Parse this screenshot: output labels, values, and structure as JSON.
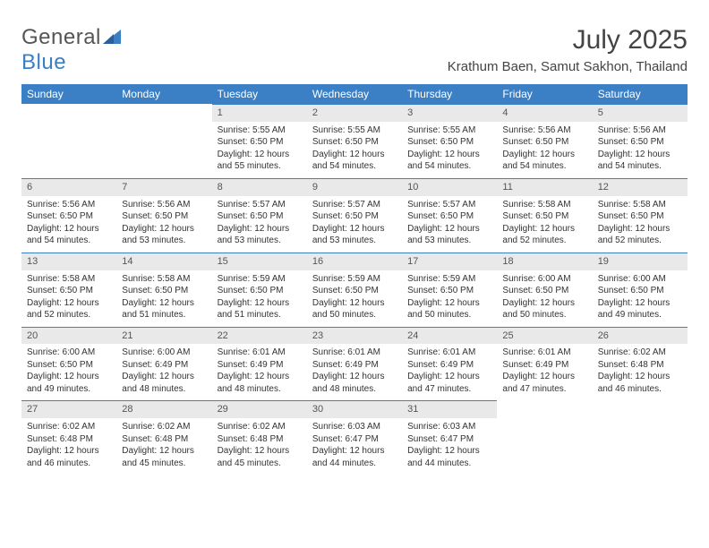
{
  "brand": {
    "name_part1": "General",
    "name_part2": "Blue"
  },
  "title": "July 2025",
  "location": "Krathum Baen, Samut Sakhon, Thailand",
  "colors": {
    "header_blue": "#3b7fc4",
    "daybar_bg": "#e9e9e9",
    "text": "#333333",
    "page_bg": "#ffffff"
  },
  "typography": {
    "title_fontsize": 30,
    "location_fontsize": 15,
    "header_fontsize": 12,
    "cell_fontsize": 10
  },
  "layout": {
    "columns": 7,
    "rows": 5,
    "start_weekday": "Sunday",
    "first_day_column_index": 2
  },
  "day_headers": [
    "Sunday",
    "Monday",
    "Tuesday",
    "Wednesday",
    "Thursday",
    "Friday",
    "Saturday"
  ],
  "labels": {
    "sunrise": "Sunrise:",
    "sunset": "Sunset:",
    "daylight": "Daylight:"
  },
  "days": [
    {
      "n": 1,
      "sunrise": "5:55 AM",
      "sunset": "6:50 PM",
      "daylight": "12 hours and 55 minutes."
    },
    {
      "n": 2,
      "sunrise": "5:55 AM",
      "sunset": "6:50 PM",
      "daylight": "12 hours and 54 minutes."
    },
    {
      "n": 3,
      "sunrise": "5:55 AM",
      "sunset": "6:50 PM",
      "daylight": "12 hours and 54 minutes."
    },
    {
      "n": 4,
      "sunrise": "5:56 AM",
      "sunset": "6:50 PM",
      "daylight": "12 hours and 54 minutes."
    },
    {
      "n": 5,
      "sunrise": "5:56 AM",
      "sunset": "6:50 PM",
      "daylight": "12 hours and 54 minutes."
    },
    {
      "n": 6,
      "sunrise": "5:56 AM",
      "sunset": "6:50 PM",
      "daylight": "12 hours and 54 minutes."
    },
    {
      "n": 7,
      "sunrise": "5:56 AM",
      "sunset": "6:50 PM",
      "daylight": "12 hours and 53 minutes."
    },
    {
      "n": 8,
      "sunrise": "5:57 AM",
      "sunset": "6:50 PM",
      "daylight": "12 hours and 53 minutes."
    },
    {
      "n": 9,
      "sunrise": "5:57 AM",
      "sunset": "6:50 PM",
      "daylight": "12 hours and 53 minutes."
    },
    {
      "n": 10,
      "sunrise": "5:57 AM",
      "sunset": "6:50 PM",
      "daylight": "12 hours and 53 minutes."
    },
    {
      "n": 11,
      "sunrise": "5:58 AM",
      "sunset": "6:50 PM",
      "daylight": "12 hours and 52 minutes."
    },
    {
      "n": 12,
      "sunrise": "5:58 AM",
      "sunset": "6:50 PM",
      "daylight": "12 hours and 52 minutes."
    },
    {
      "n": 13,
      "sunrise": "5:58 AM",
      "sunset": "6:50 PM",
      "daylight": "12 hours and 52 minutes."
    },
    {
      "n": 14,
      "sunrise": "5:58 AM",
      "sunset": "6:50 PM",
      "daylight": "12 hours and 51 minutes."
    },
    {
      "n": 15,
      "sunrise": "5:59 AM",
      "sunset": "6:50 PM",
      "daylight": "12 hours and 51 minutes."
    },
    {
      "n": 16,
      "sunrise": "5:59 AM",
      "sunset": "6:50 PM",
      "daylight": "12 hours and 50 minutes."
    },
    {
      "n": 17,
      "sunrise": "5:59 AM",
      "sunset": "6:50 PM",
      "daylight": "12 hours and 50 minutes."
    },
    {
      "n": 18,
      "sunrise": "6:00 AM",
      "sunset": "6:50 PM",
      "daylight": "12 hours and 50 minutes."
    },
    {
      "n": 19,
      "sunrise": "6:00 AM",
      "sunset": "6:50 PM",
      "daylight": "12 hours and 49 minutes."
    },
    {
      "n": 20,
      "sunrise": "6:00 AM",
      "sunset": "6:50 PM",
      "daylight": "12 hours and 49 minutes."
    },
    {
      "n": 21,
      "sunrise": "6:00 AM",
      "sunset": "6:49 PM",
      "daylight": "12 hours and 48 minutes."
    },
    {
      "n": 22,
      "sunrise": "6:01 AM",
      "sunset": "6:49 PM",
      "daylight": "12 hours and 48 minutes."
    },
    {
      "n": 23,
      "sunrise": "6:01 AM",
      "sunset": "6:49 PM",
      "daylight": "12 hours and 48 minutes."
    },
    {
      "n": 24,
      "sunrise": "6:01 AM",
      "sunset": "6:49 PM",
      "daylight": "12 hours and 47 minutes."
    },
    {
      "n": 25,
      "sunrise": "6:01 AM",
      "sunset": "6:49 PM",
      "daylight": "12 hours and 47 minutes."
    },
    {
      "n": 26,
      "sunrise": "6:02 AM",
      "sunset": "6:48 PM",
      "daylight": "12 hours and 46 minutes."
    },
    {
      "n": 27,
      "sunrise": "6:02 AM",
      "sunset": "6:48 PM",
      "daylight": "12 hours and 46 minutes."
    },
    {
      "n": 28,
      "sunrise": "6:02 AM",
      "sunset": "6:48 PM",
      "daylight": "12 hours and 45 minutes."
    },
    {
      "n": 29,
      "sunrise": "6:02 AM",
      "sunset": "6:48 PM",
      "daylight": "12 hours and 45 minutes."
    },
    {
      "n": 30,
      "sunrise": "6:03 AM",
      "sunset": "6:47 PM",
      "daylight": "12 hours and 44 minutes."
    },
    {
      "n": 31,
      "sunrise": "6:03 AM",
      "sunset": "6:47 PM",
      "daylight": "12 hours and 44 minutes."
    }
  ]
}
